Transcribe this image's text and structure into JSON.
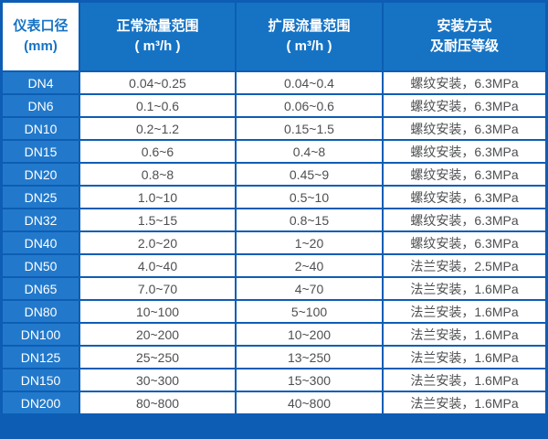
{
  "chart_data": {
    "type": "table",
    "columns": [
      "仪表口径 (mm)",
      "正常流量范围 ( m³/h )",
      "扩展流量范围 ( m³/h )",
      "安装方式及耐压等级"
    ],
    "rows": [
      [
        "DN4",
        "0.04~0.25",
        "0.04~0.4",
        "螺纹安装，6.3MPa"
      ],
      [
        "DN6",
        "0.1~0.6",
        "0.06~0.6",
        "螺纹安装，6.3MPa"
      ],
      [
        "DN10",
        "0.2~1.2",
        "0.15~1.5",
        "螺纹安装，6.3MPa"
      ],
      [
        "DN15",
        "0.6~6",
        "0.4~8",
        "螺纹安装，6.3MPa"
      ],
      [
        "DN20",
        "0.8~8",
        "0.45~9",
        "螺纹安装，6.3MPa"
      ],
      [
        "DN25",
        "1.0~10",
        "0.5~10",
        "螺纹安装，6.3MPa"
      ],
      [
        "DN32",
        "1.5~15",
        "0.8~15",
        "螺纹安装，6.3MPa"
      ],
      [
        "DN40",
        "2.0~20",
        "1~20",
        "螺纹安装，6.3MPa"
      ],
      [
        "DN50",
        "4.0~40",
        "2~40",
        "法兰安装，2.5MPa"
      ],
      [
        "DN65",
        "7.0~70",
        "4~70",
        "法兰安装，1.6MPa"
      ],
      [
        "DN80",
        "10~100",
        "5~100",
        "法兰安装，1.6MPa"
      ],
      [
        "DN100",
        "20~200",
        "10~200",
        "法兰安装，1.6MPa"
      ],
      [
        "DN125",
        "25~250",
        "13~250",
        "法兰安装，1.6MPa"
      ],
      [
        "DN150",
        "30~300",
        "15~300",
        "法兰安装，1.6MPa"
      ],
      [
        "DN200",
        "80~800",
        "40~800",
        "法兰安装，1.6MPa"
      ]
    ]
  },
  "header": {
    "col1": {
      "line1": "仪表口径",
      "line2": "(mm)"
    },
    "col2": {
      "line1": "正常流量范围",
      "line2": "( m³/h )"
    },
    "col3": {
      "line1": "扩展流量范围",
      "line2": "( m³/h )"
    },
    "col4": {
      "line1": "安装方式",
      "line2": "及耐压等级"
    }
  },
  "colors": {
    "border_blue": "#0d5db4",
    "header_blue": "#1673c4",
    "row_label_blue": "#2279cb",
    "header_text_on_blue": "#ffffff",
    "header_text_on_white": "#1673c4",
    "cell_text": "#4d4f52",
    "cell_bg": "#ffffff"
  }
}
